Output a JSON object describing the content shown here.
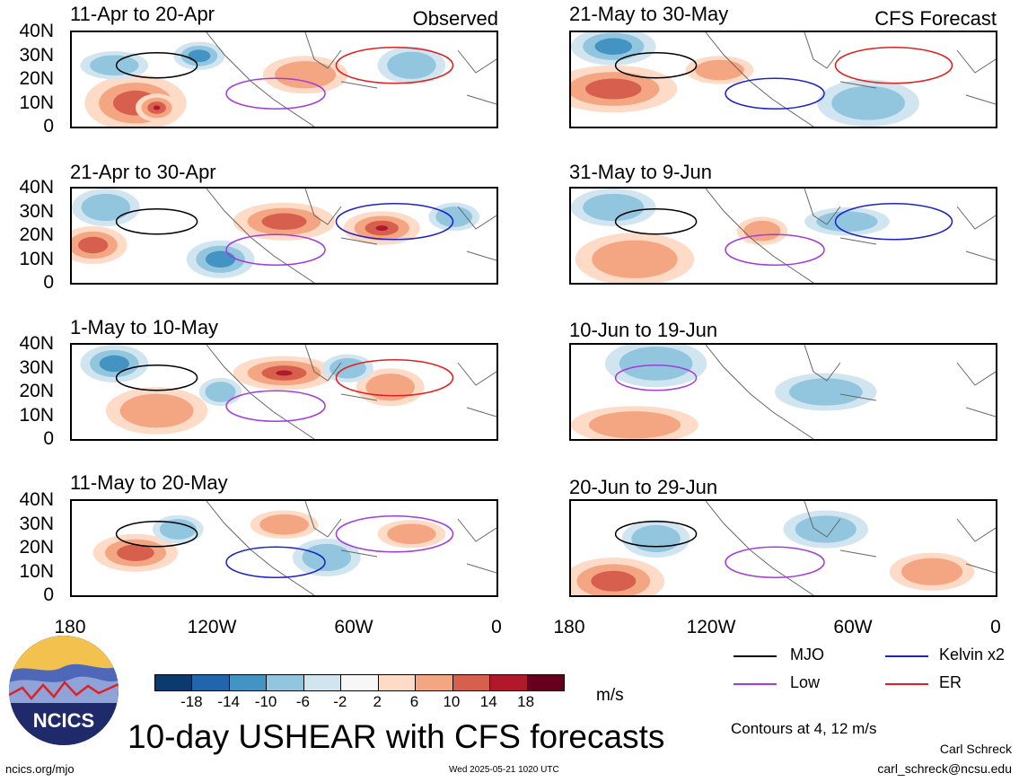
{
  "header": {
    "observed_label": "Observed",
    "forecast_label": "CFS Forecast"
  },
  "panels_left": [
    {
      "title": "11-Apr to 20-Apr"
    },
    {
      "title": "21-Apr to 30-Apr"
    },
    {
      "title": "1-May to 10-May"
    },
    {
      "title": "11-May to 20-May"
    }
  ],
  "panels_right": [
    {
      "title": "21-May to 30-May"
    },
    {
      "title": "31-May to 9-Jun"
    },
    {
      "title": "10-Jun to 19-Jun"
    },
    {
      "title": "20-Jun to 29-Jun"
    }
  ],
  "y_ticks": [
    "40N",
    "30N",
    "20N",
    "10N",
    "0"
  ],
  "x_ticks": [
    "180",
    "120W",
    "60W",
    "0"
  ],
  "legend": {
    "mjo": {
      "label": "MJO",
      "color": "#000000"
    },
    "kelvin": {
      "label": "Kelvin x2",
      "color": "#1d22c8"
    },
    "low": {
      "label": "Low",
      "color": "#a23bdc"
    },
    "er": {
      "label": "ER",
      "color": "#e02020"
    }
  },
  "colorbar": {
    "labels": [
      "-18",
      "-14",
      "-10",
      "-6",
      "-2",
      "2",
      "6",
      "10",
      "14",
      "18"
    ],
    "colors": [
      "#0b3a6e",
      "#2166ac",
      "#4393c3",
      "#92c5de",
      "#d1e5f0",
      "#f7f7f7",
      "#fddbc7",
      "#f4a582",
      "#d6604d",
      "#b2182b",
      "#67001f"
    ],
    "unit": "m/s"
  },
  "title": "10-day USHEAR with CFS forecasts",
  "contour_note": "Contours at 4, 12 m/s",
  "author_name": "Carl Schreck",
  "author_email": "carl_schreck@ncsu.edu",
  "footer_url": "ncics.org/mjo",
  "timestamp": "Wed 2025-05-21 1020 UTC",
  "logo_text": "NCICS"
}
